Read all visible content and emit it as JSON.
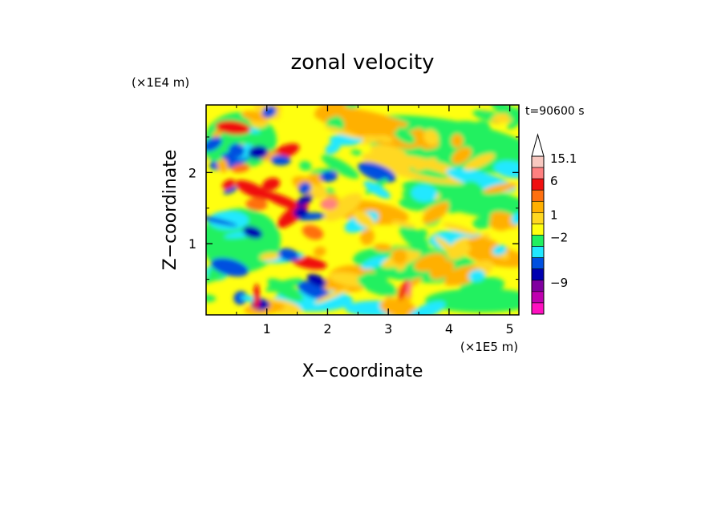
{
  "chart_data": {
    "type": "heatmap",
    "title": "zonal velocity",
    "xlabel": "X−coordinate",
    "ylabel": "Z−coordinate",
    "x_unit_label": "(×1E5 m)",
    "y_unit_label": "(×1E4 m)",
    "time_label": "t=90600 s",
    "xlim": [
      0,
      5.15
    ],
    "ylim": [
      0,
      2.95
    ],
    "x_ticks": [
      {
        "value": 1,
        "label": "1"
      },
      {
        "value": 2,
        "label": "2"
      },
      {
        "value": 3,
        "label": "3"
      },
      {
        "value": 4,
        "label": "4"
      },
      {
        "value": 5,
        "label": "5"
      }
    ],
    "y_ticks": [
      {
        "value": 1,
        "label": "1"
      },
      {
        "value": 2,
        "label": "2"
      }
    ],
    "colorbar": {
      "extend_top_color": "#ffffff",
      "levels": [
        {
          "color": "#f8c8c0",
          "label": "15.1"
        },
        {
          "color": "#ff8080",
          "label": ""
        },
        {
          "color": "#f01010",
          "label": "6"
        },
        {
          "color": "#ff7010",
          "label": ""
        },
        {
          "color": "#ffb000",
          "label": ""
        },
        {
          "color": "#ffd820",
          "label": "1"
        },
        {
          "color": "#ffff10",
          "label": ""
        },
        {
          "color": "#20f060",
          "label": "−2"
        },
        {
          "color": "#20e8ff",
          "label": ""
        },
        {
          "color": "#0050e0",
          "label": ""
        },
        {
          "color": "#0000b0",
          "label": ""
        },
        {
          "color": "#8000a0",
          "label": "−9"
        },
        {
          "color": "#c000b0",
          "label": ""
        },
        {
          "color": "#ff10c0",
          "label": ""
        }
      ]
    }
  }
}
